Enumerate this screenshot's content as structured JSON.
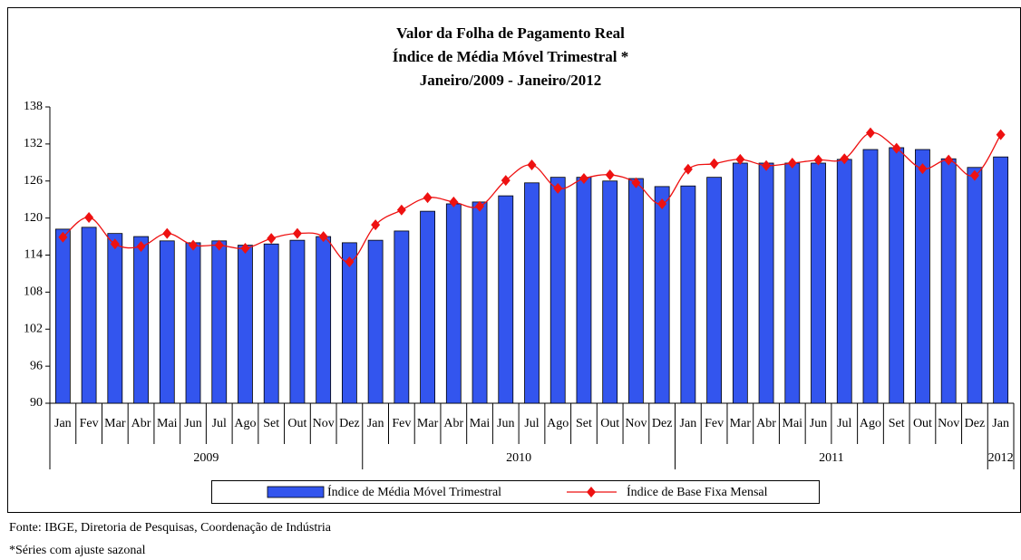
{
  "chart_data": {
    "type": "bar-line",
    "title": [
      "Valor da Folha de Pagamento Real",
      "Índice de Média Móvel Trimestral *",
      "Janeiro/2009 - Janeiro/2012"
    ],
    "categories": [
      "Jan",
      "Fev",
      "Mar",
      "Abr",
      "Mai",
      "Jun",
      "Jul",
      "Ago",
      "Set",
      "Out",
      "Nov",
      "Dez",
      "Jan",
      "Fev",
      "Mar",
      "Abr",
      "Mai",
      "Jun",
      "Jul",
      "Ago",
      "Set",
      "Out",
      "Nov",
      "Dez",
      "Jan",
      "Fev",
      "Mar",
      "Abr",
      "Mai",
      "Jun",
      "Jul",
      "Ago",
      "Set",
      "Out",
      "Nov",
      "Dez",
      "Jan"
    ],
    "x_groups": [
      {
        "label": "2009",
        "count": 12
      },
      {
        "label": "2010",
        "count": 12
      },
      {
        "label": "2011",
        "count": 12
      },
      {
        "label": "2012",
        "count": 1
      }
    ],
    "series": [
      {
        "name": "Índice de Média Móvel Trimestral",
        "type": "bar",
        "color": "#3355ee",
        "values": [
          118.2,
          118.5,
          117.5,
          117.0,
          116.3,
          116.0,
          116.3,
          115.6,
          115.8,
          116.4,
          117.0,
          116.0,
          116.4,
          117.9,
          121.1,
          122.3,
          122.6,
          123.6,
          125.7,
          126.6,
          126.6,
          126.0,
          126.4,
          125.1,
          125.2,
          126.6,
          128.9,
          128.9,
          128.9,
          128.9,
          129.5,
          131.1,
          131.4,
          131.1,
          129.6,
          128.2,
          129.9
        ]
      },
      {
        "name": "Índice de Base Fixa Mensal",
        "type": "line",
        "color": "#ee1111",
        "values": [
          116.9,
          120.1,
          115.8,
          115.4,
          117.5,
          115.6,
          115.6,
          115.1,
          116.7,
          117.5,
          117.0,
          112.9,
          118.9,
          121.3,
          123.3,
          122.6,
          121.9,
          126.1,
          128.6,
          124.8,
          126.4,
          127.0,
          125.7,
          122.3,
          127.9,
          128.8,
          129.5,
          128.5,
          128.9,
          129.4,
          129.6,
          133.8,
          131.3,
          128.0,
          129.4,
          126.9,
          133.5
        ]
      }
    ],
    "ylim": [
      90,
      138
    ],
    "yticks": [
      90,
      96,
      102,
      108,
      114,
      120,
      126,
      132,
      138
    ],
    "grid": false,
    "legend": "bottom",
    "source": "Fonte: IBGE, Diretoria de Pesquisas, Coordenação de Indústria",
    "note": "*Séries com ajuste sazonal"
  }
}
